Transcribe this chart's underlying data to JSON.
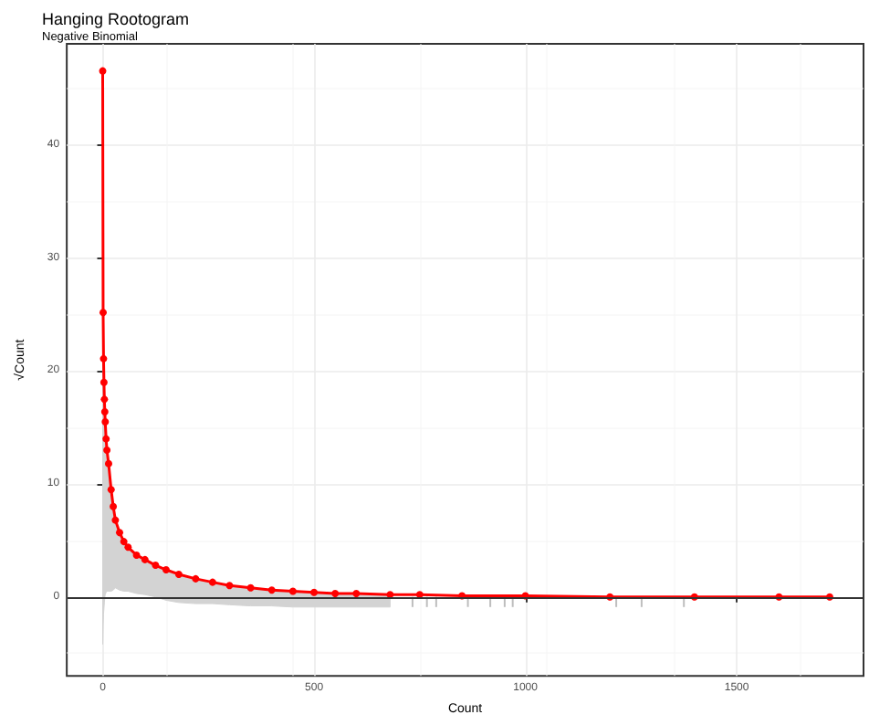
{
  "chart_data": {
    "type": "line",
    "title": "Hanging Rootogram",
    "subtitle": "Negative Binomial",
    "xlabel": "Count",
    "ylabel": "√Count",
    "xlim": [
      -85,
      1800
    ],
    "xticks": [
      0,
      500,
      1000,
      1500
    ],
    "ylim": [
      -7,
      49
    ],
    "yticks": [
      0,
      10,
      20,
      30,
      40
    ],
    "grid": true,
    "marker": "circle",
    "ref_lines": [
      {
        "axis": "y",
        "value": 0,
        "color": "#333333"
      }
    ],
    "series": [
      {
        "color": "#ff0000",
        "x": [
          0,
          1,
          2,
          3,
          4,
          5,
          6,
          8,
          10,
          14,
          20,
          25,
          30,
          40,
          50,
          60,
          80,
          100,
          125,
          150,
          180,
          220,
          260,
          300,
          350,
          400,
          450,
          500,
          550,
          600,
          680,
          750,
          850,
          1000,
          1200,
          1400,
          1600,
          1720
        ],
        "values": [
          46.6,
          25.2,
          21.1,
          19.0,
          17.5,
          16.4,
          15.5,
          14.0,
          13.0,
          11.8,
          9.5,
          8.0,
          6.8,
          5.7,
          4.9,
          4.4,
          3.7,
          3.3,
          2.8,
          2.4,
          2.0,
          1.6,
          1.3,
          1.0,
          0.8,
          0.6,
          0.5,
          0.4,
          0.3,
          0.3,
          0.2,
          0.2,
          0.1,
          0.1,
          0,
          0,
          0,
          0
        ],
        "upper": [
          46.6,
          25.2,
          21.1,
          19.0,
          17.5,
          16.4,
          15.5,
          14.0,
          13.0,
          11.8,
          9.5,
          8.0,
          6.8,
          5.7,
          4.9,
          4.4,
          3.7,
          3.3,
          2.8,
          2.4,
          2.0,
          1.6,
          1.3,
          1.0,
          0.8,
          0.6,
          0.5,
          0.4,
          0.3,
          0.3,
          0.2,
          null,
          null,
          null,
          null,
          null,
          null,
          null
        ],
        "lower": [
          -4.2,
          -2.5,
          -1.5,
          -1.0,
          -0.5,
          0,
          0.2,
          0.4,
          0.5,
          0.5,
          0.5,
          0.6,
          0.8,
          0.6,
          0.5,
          0.5,
          0.3,
          0.2,
          0,
          -0.3,
          -0.5,
          -0.6,
          -0.6,
          -0.7,
          -0.8,
          -0.8,
          -0.9,
          -0.9,
          -0.9,
          -0.9,
          -0.9,
          null,
          null,
          null,
          null,
          null,
          null,
          null
        ]
      },
      {
        "type": "bar",
        "color": "#bebebe",
        "x": [
          733,
          767,
          789,
          864,
          917,
          951,
          970,
          1215,
          1275,
          1375
        ],
        "base": [
          -0.9,
          -0.9,
          -0.9,
          -0.9,
          -0.9,
          -0.9,
          -0.9,
          -0.9,
          -0.9,
          -0.9
        ],
        "values": [
          0.9,
          0.9,
          0.9,
          0.9,
          0.9,
          0.9,
          0.9,
          0.9,
          0.9,
          0.9
        ]
      }
    ]
  }
}
